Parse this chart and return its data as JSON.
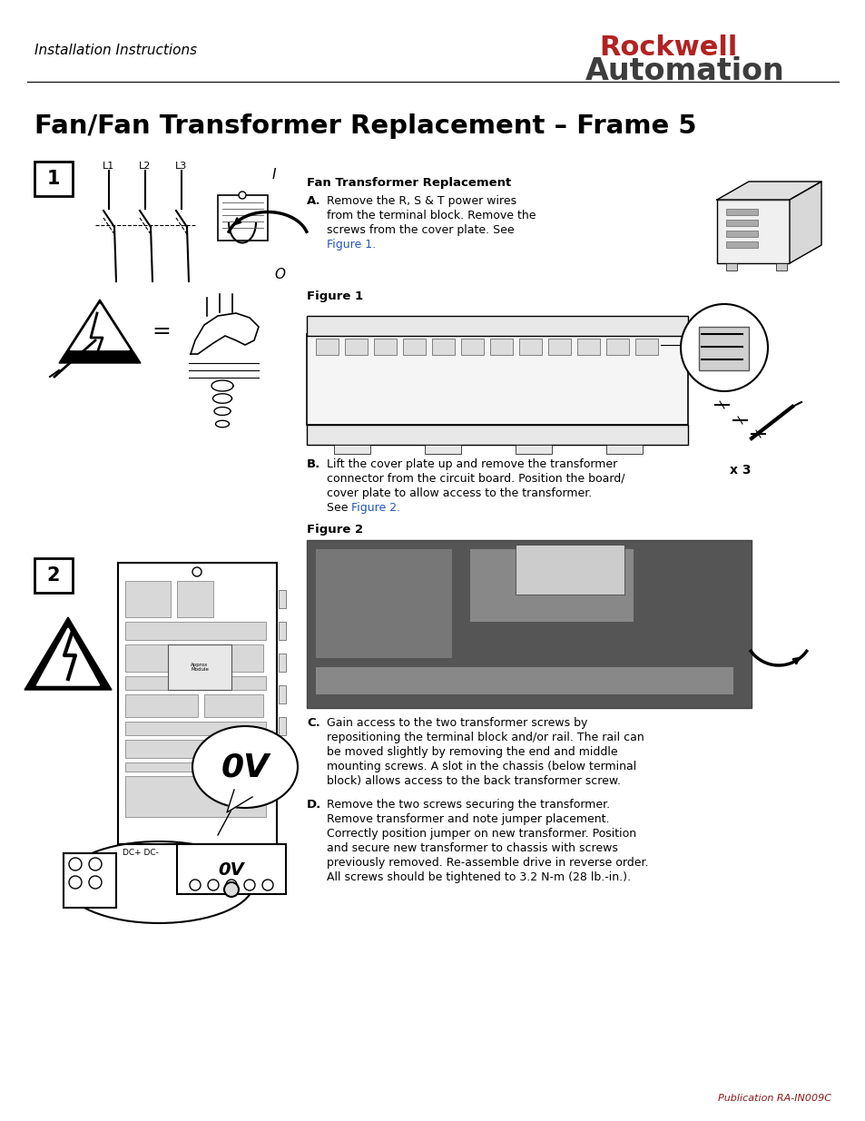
{
  "page_bg": "#ffffff",
  "header_italic_text": "Installation Instructions",
  "rockwell_text": "Rockwell",
  "rockwell_color": "#B22222",
  "automation_text": "Automation",
  "automation_color": "#3d3d3d",
  "title_text": "Fan/Fan Transformer Replacement – Frame 5",
  "fan_transformer_label": "Fan Transformer Replacement",
  "step_A_header": "A.",
  "step_A_lines": [
    "Remove the R, S & T power wires",
    "from the terminal block. Remove the",
    "screws from the cover plate. See"
  ],
  "step_A_link": "Figure 1.",
  "figure1_label": "Figure 1",
  "x3_label": "x 3",
  "step_B_header": "B.",
  "step_B_lines": [
    "Lift the cover plate up and remove the transformer",
    "connector from the circuit board. Position the board/",
    "cover plate to allow access to the transformer.",
    "See "
  ],
  "step_B_link": "Figure 2.",
  "figure2_label": "Figure 2",
  "step_C_header": "C.",
  "step_C_lines": [
    "Gain access to the two transformer screws by",
    "repositioning the terminal block and/or rail. The rail can",
    "be moved slightly by removing the end and middle",
    "mounting screws. A slot in the chassis (below terminal",
    "block) allows access to the back transformer screw."
  ],
  "step_D_header": "D.",
  "step_D_lines": [
    "Remove the two screws securing the transformer.",
    "Remove transformer and note jumper placement.",
    "Correctly position jumper on new transformer. Position",
    "and secure new transformer to chassis with screws",
    "previously removed. Re-assemble drive in reverse order.",
    "All screws should be tightened to 3.2 N-m (28 lb.-in.)."
  ],
  "footer_text": "Publication RA-IN009C",
  "footer_color": "#8B1A1A",
  "box1_label": "1",
  "box2_label": "2",
  "link_color": "#2255BB",
  "lw_thin": 0.8,
  "lw_med": 1.5,
  "lw_thick": 2.5
}
